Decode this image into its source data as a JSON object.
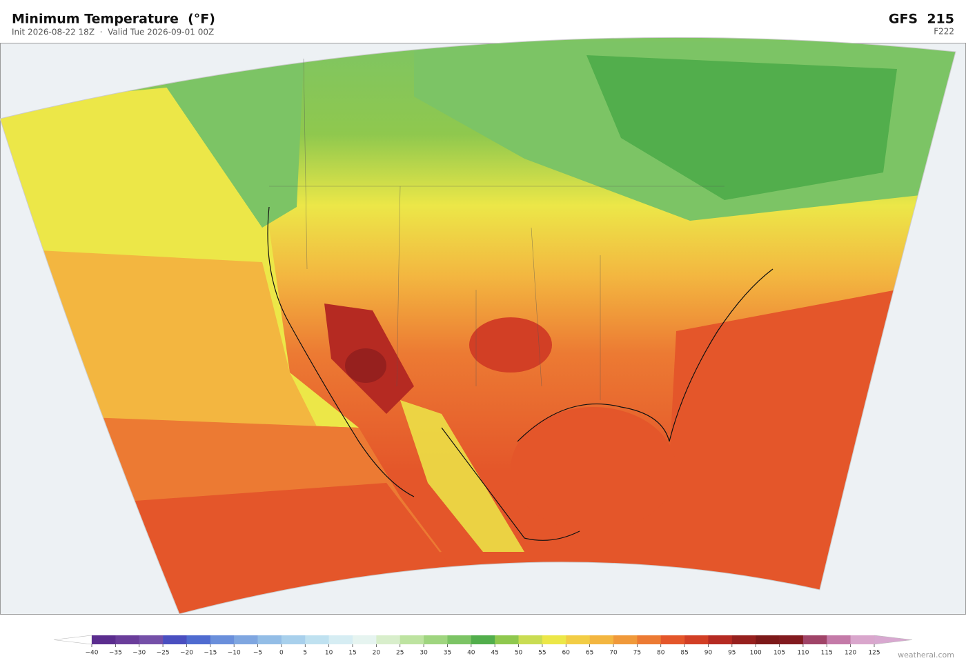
{
  "header": {
    "title": "Minimum Temperature  (°F)",
    "subtitle": "Init 2026-08-22 18Z  ·  Valid Tue 2026-09-01 00Z",
    "model": "GFS  215",
    "forecast_hour": "F222"
  },
  "colorbar": {
    "ticks": [
      {
        "value": -40,
        "label": "−40"
      },
      {
        "value": -35,
        "label": "−35"
      },
      {
        "value": -30,
        "label": "−30"
      },
      {
        "value": -25,
        "label": "−25"
      },
      {
        "value": -20,
        "label": "−20"
      },
      {
        "value": -15,
        "label": "−15"
      },
      {
        "value": -10,
        "label": "−10"
      },
      {
        "value": -5,
        "label": "−5"
      },
      0,
      5,
      10,
      15,
      20,
      25,
      30,
      35,
      40,
      45,
      50,
      55,
      60,
      65,
      70,
      75,
      80,
      85,
      90,
      95,
      100,
      105,
      110,
      115,
      120,
      125
    ],
    "colors": [
      "#5b2d8e",
      "#6a3d9a",
      "#7550a8",
      "#4a4fc0",
      "#4f6bd0",
      "#6a8fdb",
      "#7fa6e0",
      "#93bde6",
      "#a8d0ec",
      "#bfe1f0",
      "#d6edf3",
      "#e6f4f0",
      "#d8eecb",
      "#bde3a0",
      "#9fd57f",
      "#7cc465",
      "#52ae4c",
      "#8fc84e",
      "#c9dc52",
      "#ece748",
      "#f2cd45",
      "#f3b640",
      "#f0993a",
      "#ec7a33",
      "#e4562a",
      "#d23f25",
      "#b52a22",
      "#96201e",
      "#7c1919",
      "#821a1f",
      "#a04468",
      "#c47aa8",
      "#d9a6cc"
    ],
    "extend_low_color": "#ffffff",
    "extend_high_color": "#d8a8d0"
  },
  "credit": "weatherai.com"
}
